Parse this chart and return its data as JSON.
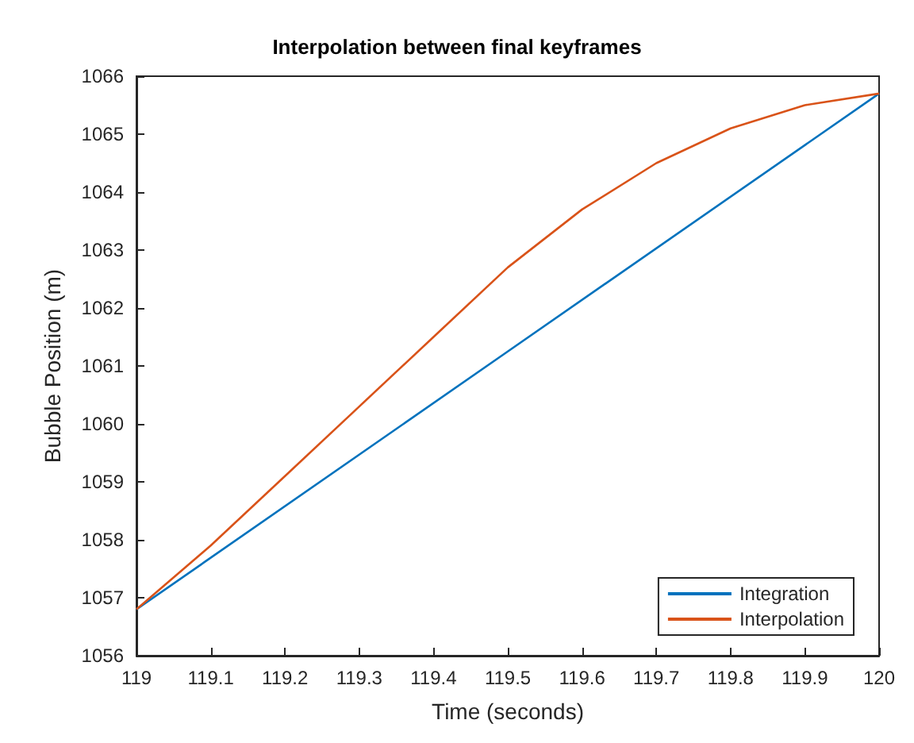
{
  "chart_data": {
    "type": "line",
    "title": "Interpolation between final keyframes",
    "xlabel": "Time (seconds)",
    "ylabel": "Bubble Position (m)",
    "xlim": [
      119,
      120
    ],
    "xticks": [
      119,
      119.1,
      119.2,
      119.3,
      119.4,
      119.5,
      119.6,
      119.7,
      119.8,
      119.9,
      120
    ],
    "ylim": [
      1056,
      1066
    ],
    "yticks": [
      1056,
      1057,
      1058,
      1059,
      1060,
      1061,
      1062,
      1063,
      1064,
      1065,
      1066
    ],
    "grid": false,
    "legend": "bottom right",
    "marker": "none",
    "line_style": "solid",
    "series": [
      {
        "name": "Integration",
        "color": "#0072bd",
        "x": [
          119,
          119.5,
          120
        ],
        "values": [
          1056.8,
          1061.25,
          1065.7
        ]
      },
      {
        "name": "Interpolation",
        "color": "#d95319",
        "x": [
          119,
          119.1,
          119.2,
          119.3,
          119.4,
          119.5,
          119.6,
          119.7,
          119.8,
          119.9,
          120
        ],
        "values": [
          1056.8,
          1057.9,
          1059.1,
          1060.3,
          1061.5,
          1062.7,
          1063.7,
          1064.5,
          1065.1,
          1065.5,
          1065.7
        ]
      }
    ]
  }
}
